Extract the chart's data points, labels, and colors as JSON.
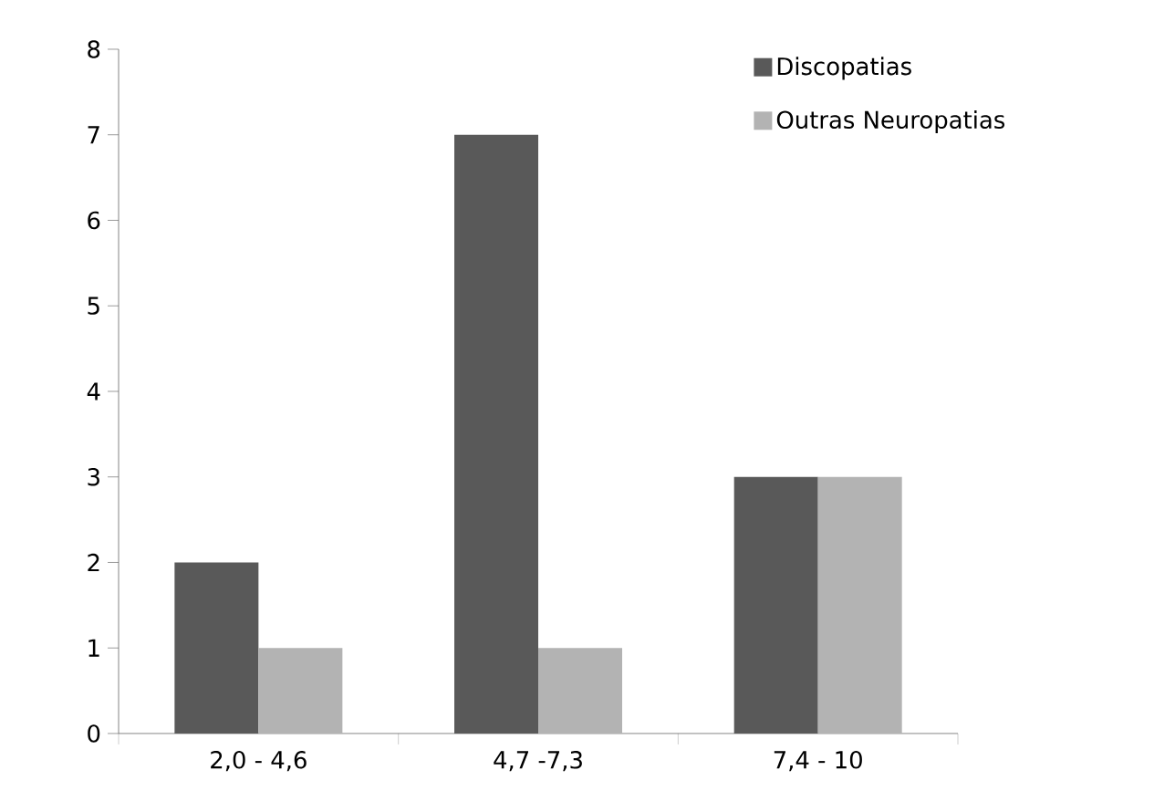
{
  "chart_data": {
    "type": "bar",
    "categories": [
      "2,0 - 4,6",
      "4,7 -7,3",
      "7,4 - 10"
    ],
    "series": [
      {
        "name": "Discopatias",
        "color": "#595959",
        "values": [
          2,
          7,
          3
        ]
      },
      {
        "name": "Outras Neuropatias",
        "color": "#b3b3b3",
        "values": [
          1,
          1,
          3
        ]
      }
    ],
    "ylim": [
      0,
      8
    ],
    "yticks": [
      0,
      1,
      2,
      3,
      4,
      5,
      6,
      7,
      8
    ],
    "grid": false,
    "legend": "top right"
  }
}
